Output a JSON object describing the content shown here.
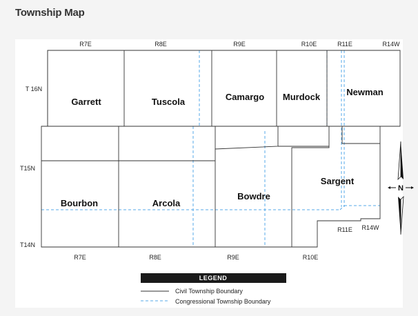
{
  "title": "Township Map",
  "ranges_top": [
    "R7E",
    "R8E",
    "R9E",
    "R10E",
    "R11E",
    "R14W"
  ],
  "ranges_bottom": [
    "R7E",
    "R8E",
    "R9E",
    "R10E"
  ],
  "ranges_right": [
    "R11E",
    "R14W"
  ],
  "tiers": [
    "T 16N",
    "T15N",
    "T14N"
  ],
  "townships": [
    "Garrett",
    "Tuscola",
    "Camargo",
    "Murdock",
    "Newman",
    "Bourbon",
    "Arcola",
    "Bowdre",
    "Sargent"
  ],
  "legend": {
    "title": "LEGEND",
    "civil_label": "Civil Township Boundary",
    "congressional_label": "Congressional Township Boundary",
    "civil_color": "#333333",
    "congressional_color": "#55a8e8"
  },
  "north_label": "N"
}
